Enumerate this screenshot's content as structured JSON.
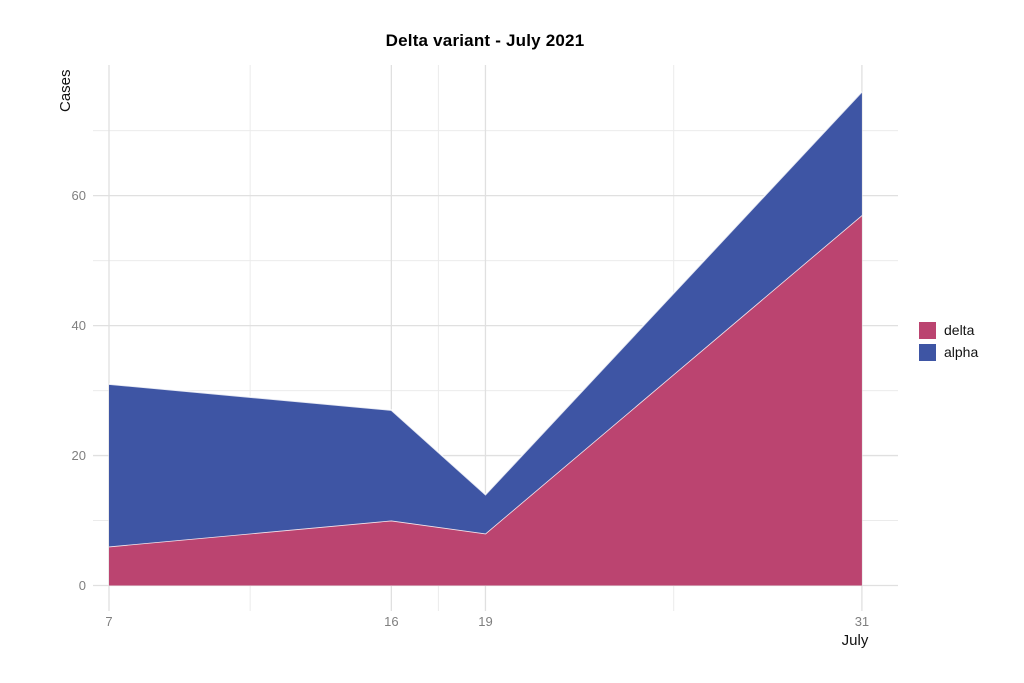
{
  "title": "Delta variant - July 2021",
  "chart_data": {
    "type": "area",
    "stacked": true,
    "title": "Delta variant - July 2021",
    "xlabel": "July",
    "ylabel": "Cases",
    "x": [
      7,
      16,
      19,
      31
    ],
    "series": [
      {
        "name": "delta",
        "color": "#bb4470",
        "values": [
          6,
          10,
          8,
          57
        ]
      },
      {
        "name": "alpha",
        "color": "#3e55a4",
        "values": [
          25,
          17,
          6,
          19
        ]
      }
    ],
    "stack_totals": [
      31,
      27,
      14,
      76
    ],
    "x_ticks": [
      7,
      16,
      19,
      31
    ],
    "x_tick_labels": [
      "7",
      "16",
      "19",
      "31"
    ],
    "x_minor_ticks": [
      11.5,
      17.5,
      25
    ],
    "y_ticks": [
      0,
      20,
      40,
      60
    ],
    "y_tick_labels": [
      "0",
      "20",
      "40",
      "60"
    ],
    "y_minor_ticks": [
      10,
      30,
      50,
      70
    ],
    "xlim": [
      6.49,
      32.15
    ],
    "ylim": [
      -3.92,
      80.1
    ],
    "grid": true,
    "legend_position": "right-center"
  },
  "legend": {
    "items": [
      {
        "label": "delta",
        "color": "#bb4470"
      },
      {
        "label": "alpha",
        "color": "#3e55a4"
      }
    ]
  },
  "style_colors": {
    "grid_major": "#e0e0e0",
    "grid_minor": "#ebebeb",
    "tick_label": "#7f7f7f",
    "band_separator": "#ffffff"
  }
}
